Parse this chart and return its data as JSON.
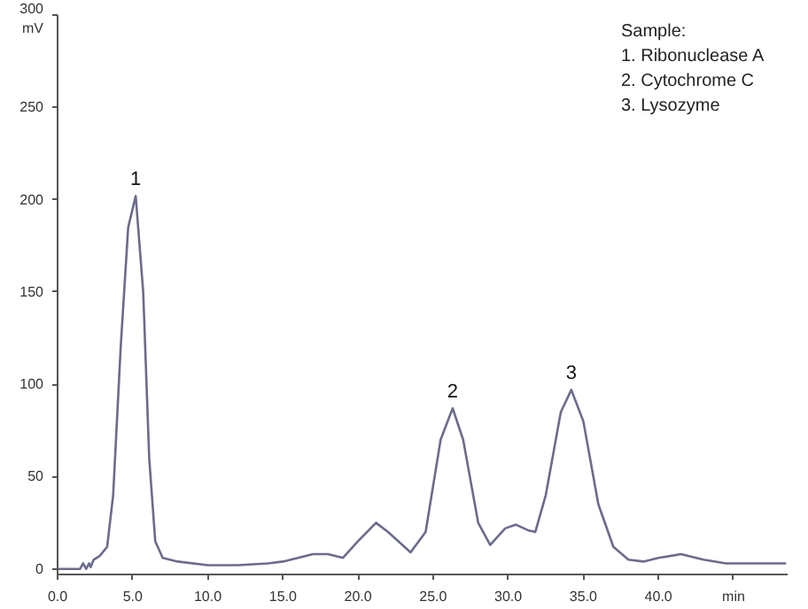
{
  "chart_data": {
    "type": "line",
    "x": [
      0,
      1,
      1.5,
      1.7,
      1.9,
      2.1,
      2.2,
      2.4,
      2.8,
      3.3,
      3.7,
      4.2,
      4.7,
      5.2,
      5.7,
      6.1,
      6.5,
      7,
      8,
      10,
      12,
      14,
      15,
      16,
      17,
      18,
      19,
      20,
      21.2,
      22,
      23.5,
      24.5,
      25.5,
      26.3,
      27,
      28,
      28.8,
      29.8,
      30.5,
      31.3,
      31.8,
      32.5,
      33.5,
      34.2,
      35,
      36,
      37,
      38,
      39,
      40,
      41.5,
      43,
      44.5,
      48.5
    ],
    "series": [
      {
        "color": "#6b6b8c",
        "values": [
          0,
          0,
          0,
          3,
          0,
          3,
          1,
          5,
          7,
          12,
          40,
          120,
          185,
          202,
          150,
          60,
          15,
          6,
          4,
          2,
          2,
          3,
          4,
          6,
          8,
          8,
          6,
          15,
          25,
          20,
          9,
          20,
          70,
          87,
          70,
          25,
          13,
          22,
          24,
          21,
          20,
          40,
          85,
          97,
          80,
          35,
          12,
          5,
          4,
          6,
          8,
          5,
          3,
          3
        ]
      }
    ],
    "xlim": [
      0,
      48.6
    ],
    "ylim": [
      -3,
      300
    ],
    "xticks": [
      {
        "value": 0,
        "label": "0.0"
      },
      {
        "value": 5,
        "label": "5.0"
      },
      {
        "value": 10,
        "label": "10.0"
      },
      {
        "value": 15,
        "label": "15.0"
      },
      {
        "value": 20,
        "label": "20.0"
      },
      {
        "value": 25,
        "label": "25.0"
      },
      {
        "value": 30,
        "label": "30.0"
      },
      {
        "value": 35,
        "label": "35.0"
      },
      {
        "value": 40,
        "label": "40.0"
      },
      {
        "value": 45,
        "label": "min"
      }
    ],
    "yticks": [
      0,
      50,
      100,
      150,
      200,
      250,
      {
        "value": 300,
        "label": "300\nmV"
      }
    ],
    "grid": false,
    "marker": "none",
    "line_style": "solid",
    "annotations": [
      {
        "text": "1",
        "x": 5.2,
        "y": 202
      },
      {
        "text": "2",
        "x": 26.3,
        "y": 87
      },
      {
        "text": "3",
        "x": 34.2,
        "y": 97
      },
      "Sample:\n1. Ribonuclease A\n2. Cytochrome C\n3. Lysozyme"
    ]
  }
}
